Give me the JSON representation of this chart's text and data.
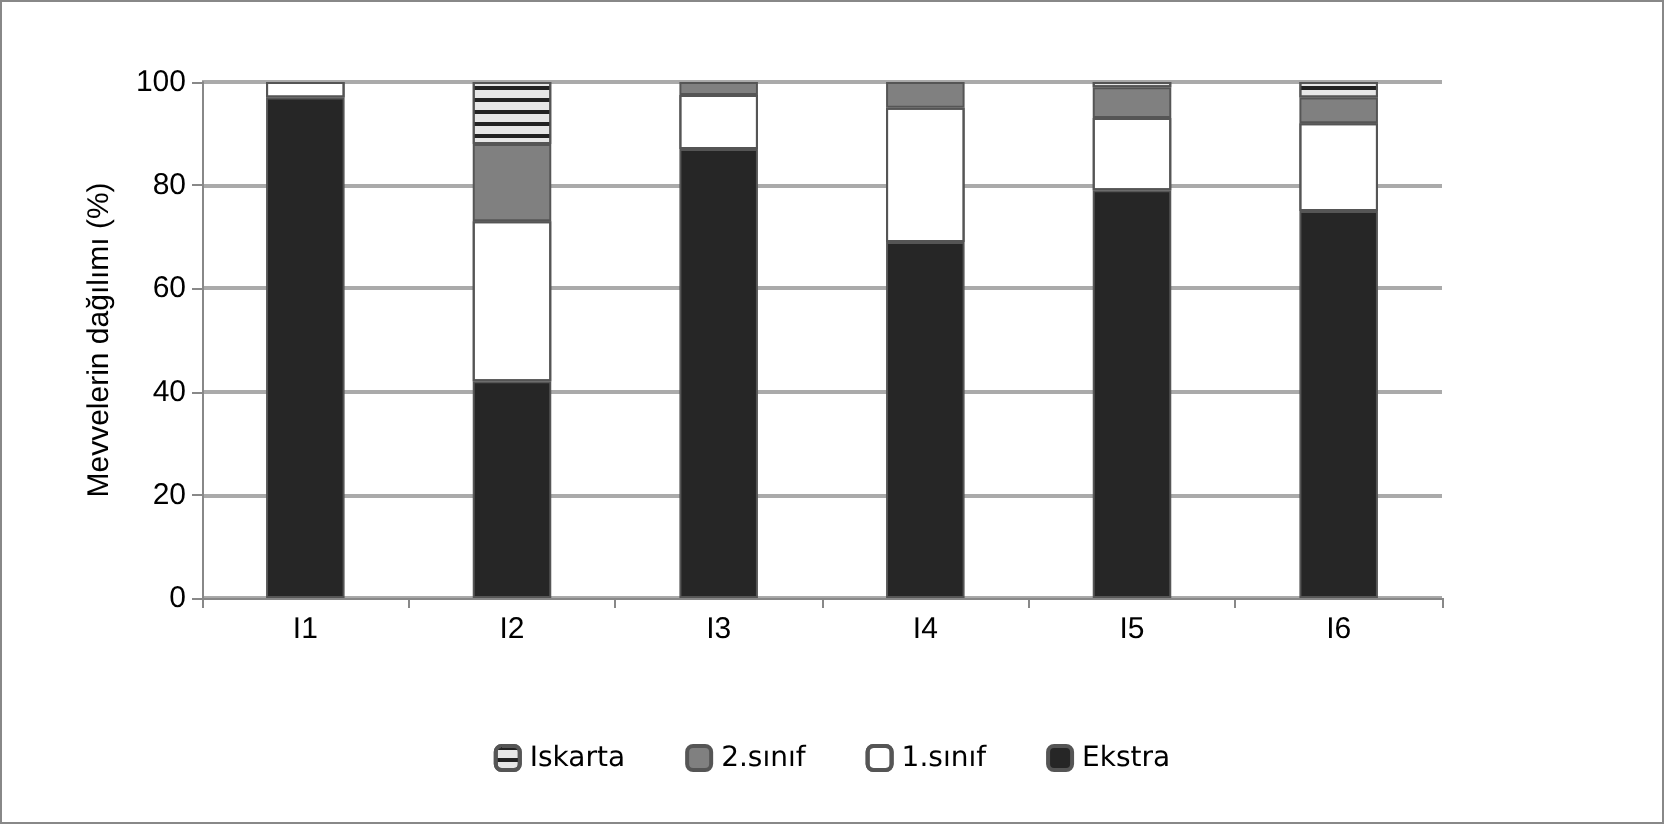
{
  "chart_data": {
    "type": "bar",
    "stacked": true,
    "ylabel": "Mevvelerin dağılımı (%)",
    "categories": [
      "I1",
      "I2",
      "I3",
      "I4",
      "I5",
      "I6"
    ],
    "series": [
      {
        "name": "Ekstra",
        "color": "#262626",
        "values": [
          97,
          42,
          87,
          69,
          79,
          75
        ]
      },
      {
        "name": "1.sınıf",
        "color": "#ffffff",
        "values": [
          3,
          31,
          10.5,
          26,
          14,
          17
        ]
      },
      {
        "name": "2.sınıf",
        "color": "#808080",
        "values": [
          null,
          15,
          2.5,
          5,
          6,
          5
        ]
      },
      {
        "name": "Iskarta",
        "color": "#e6e6e6",
        "values": [
          null,
          12,
          null,
          null,
          1,
          3
        ]
      }
    ],
    "ylim": [
      0,
      100
    ],
    "yticks": [
      0,
      20,
      40,
      60,
      80,
      100
    ],
    "grid": "y",
    "legend": "bottom"
  }
}
